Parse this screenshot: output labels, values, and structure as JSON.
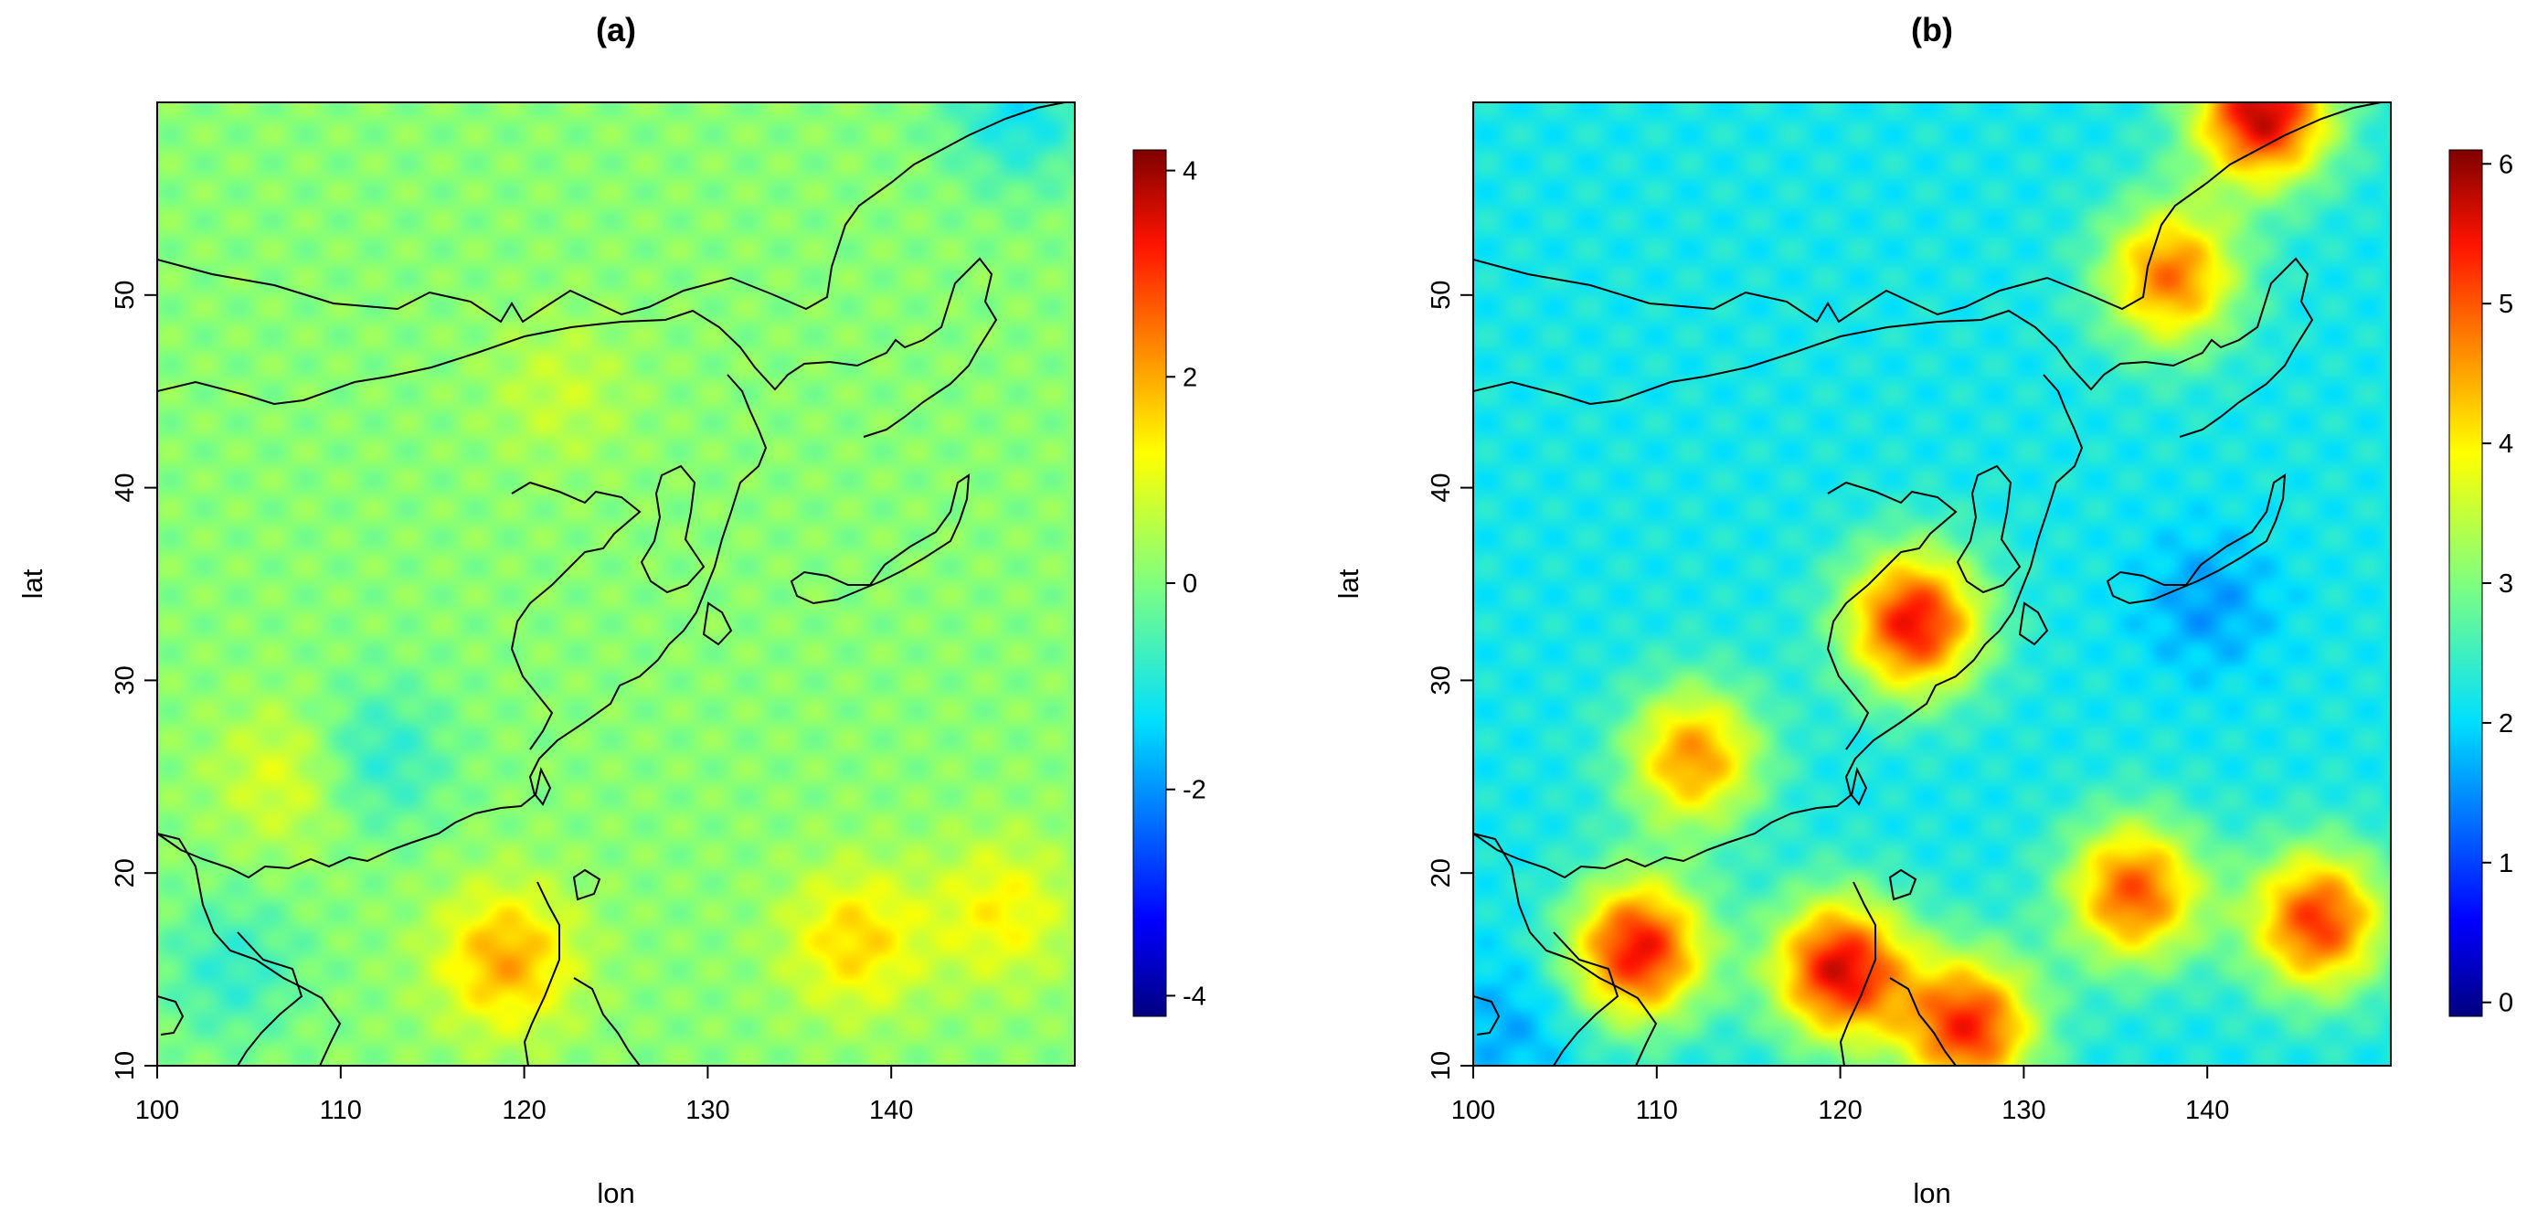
{
  "chart_data": [
    {
      "type": "heatmap",
      "title": "(a)",
      "xlabel": "lon",
      "ylabel": "lat",
      "xlim": [
        100,
        150
      ],
      "ylim": [
        10,
        60
      ],
      "x_ticks": [
        100,
        110,
        120,
        130,
        140
      ],
      "y_ticks": [
        10,
        20,
        30,
        40,
        50
      ],
      "colorbar": {
        "min": -4.2,
        "max": 4.2,
        "ticks": [
          4,
          2,
          0,
          -2,
          -4
        ]
      },
      "field_summary": {
        "background": 0.1,
        "hotspots": [
          {
            "lon": 138,
            "lat": 16.5,
            "value": 1.6
          },
          {
            "lon": 119,
            "lat": 15.5,
            "value": 2.0
          },
          {
            "lon": 146,
            "lat": 18,
            "value": 1.3
          },
          {
            "lon": 107,
            "lat": 25,
            "value": 1.0
          },
          {
            "lon": 122,
            "lat": 45,
            "value": 0.7
          }
        ],
        "coldspots": [
          {
            "lon": 112,
            "lat": 26,
            "value": -0.9
          },
          {
            "lon": 104,
            "lat": 15,
            "value": -0.8
          },
          {
            "lon": 147,
            "lat": 59.5,
            "value": -1.2
          }
        ]
      },
      "coastline": true
    },
    {
      "type": "heatmap",
      "title": "(b)",
      "xlabel": "lon",
      "ylabel": "lat",
      "xlim": [
        100,
        150
      ],
      "ylim": [
        10,
        60
      ],
      "x_ticks": [
        100,
        110,
        120,
        130,
        140
      ],
      "y_ticks": [
        10,
        20,
        30,
        40,
        50
      ],
      "colorbar": {
        "min": -0.1,
        "max": 6.1,
        "ticks": [
          6,
          5,
          4,
          3,
          2,
          1,
          0
        ]
      },
      "field_summary": {
        "background": 2.2,
        "hotspots": [
          {
            "lon": 146,
            "lat": 17.5,
            "value": 5.2
          },
          {
            "lon": 136,
            "lat": 19,
            "value": 5.0
          },
          {
            "lon": 109,
            "lat": 16,
            "value": 5.5
          },
          {
            "lon": 120,
            "lat": 15,
            "value": 5.6
          },
          {
            "lon": 127,
            "lat": 12,
            "value": 5.3
          },
          {
            "lon": 143,
            "lat": 59.5,
            "value": 5.8
          },
          {
            "lon": 124,
            "lat": 33,
            "value": 5.5
          },
          {
            "lon": 112,
            "lat": 26,
            "value": 4.6
          },
          {
            "lon": 138,
            "lat": 51,
            "value": 4.8
          }
        ],
        "coldspots": [
          {
            "lon": 140,
            "lat": 34,
            "value": 1.6
          },
          {
            "lon": 102,
            "lat": 12,
            "value": 1.7
          }
        ]
      },
      "coastline": true
    }
  ]
}
